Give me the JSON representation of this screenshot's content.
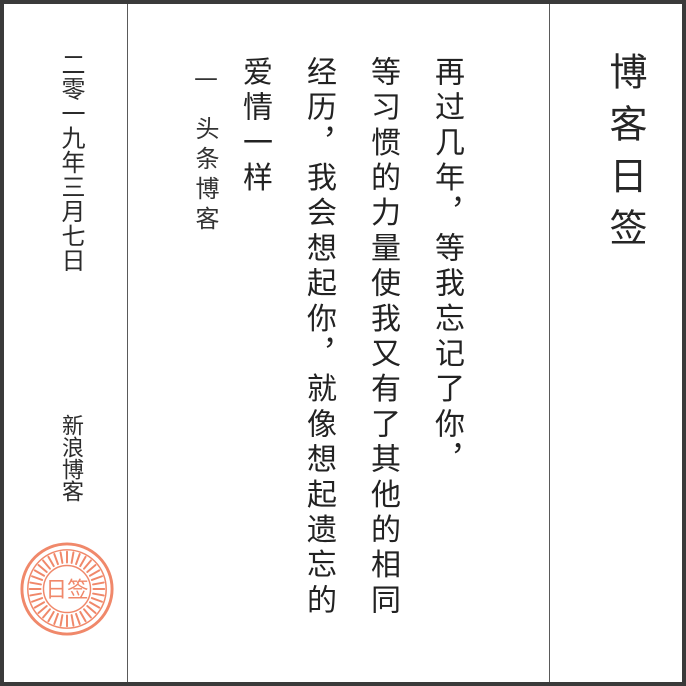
{
  "title": "博客日签",
  "poem": {
    "lines": [
      "再过几年，等我忘记了你，",
      "等习惯的力量使我又有了其他的相同",
      "经历，我会想起你，就像想起遗忘的",
      "爱情一样"
    ]
  },
  "attribution": {
    "dash": "—",
    "author": "头条博客"
  },
  "date": "二零一九年三月七日",
  "source": "新浪博客",
  "seal": {
    "text": "日签",
    "color": "#f0886a"
  }
}
